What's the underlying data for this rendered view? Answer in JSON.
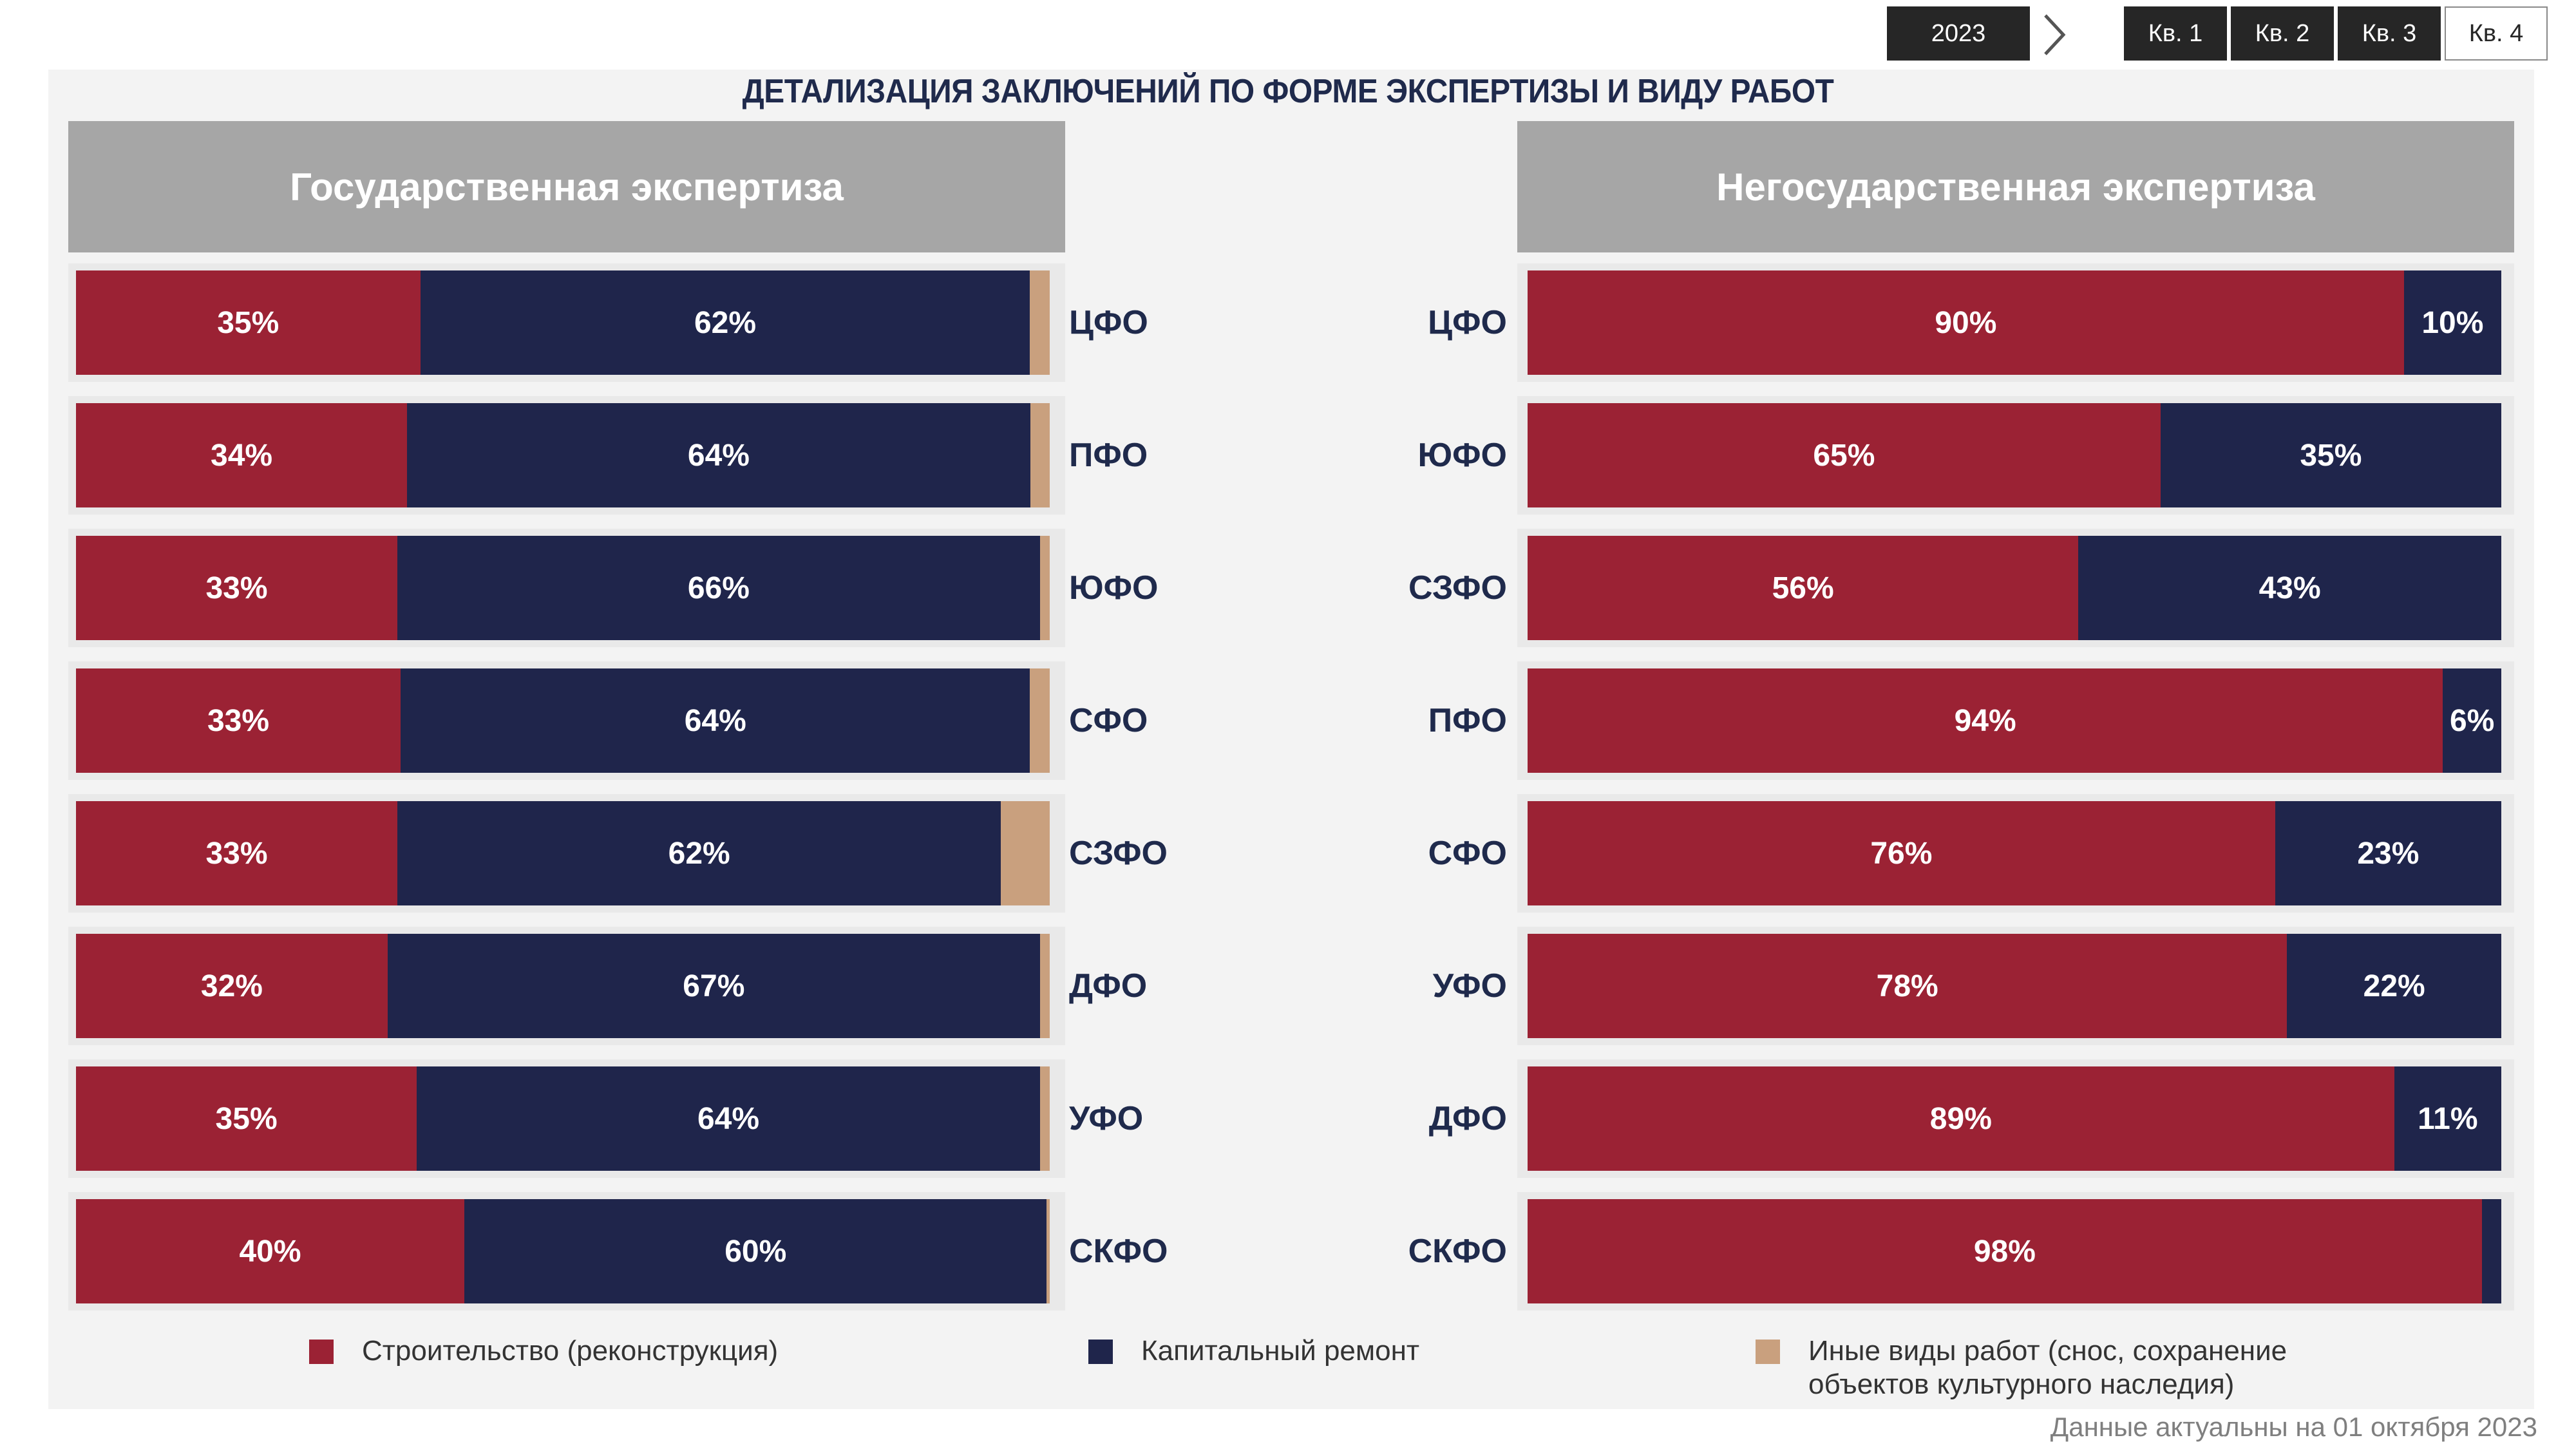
{
  "controls": {
    "year": "2023",
    "quarters": [
      {
        "label": "Кв. 1",
        "active": true
      },
      {
        "label": "Кв. 2",
        "active": true
      },
      {
        "label": "Кв. 3",
        "active": true
      },
      {
        "label": "Кв. 4",
        "active": false
      }
    ]
  },
  "colors": {
    "build": "#9b2234",
    "repair": "#1f254b",
    "other": "#c9a07e"
  },
  "chart_data": {
    "type": "bar",
    "stacked": true,
    "orientation": "horizontal",
    "title": "ДЕТАЛИЗАЦИЯ ЗАКЛЮЧЕНИЙ ПО ФОРМЕ ЭКСПЕРТИЗЫ И ВИДУ РАБОТ",
    "legend": [
      {
        "key": "build",
        "label": "Строительство (реконструкция)"
      },
      {
        "key": "repair",
        "label": "Капитальный ремонт"
      },
      {
        "key": "other",
        "label": "Иные виды работ (снос, сохранение\nобъектов культурного наследия)"
      }
    ],
    "panels": [
      {
        "title": "Государственная экспертиза",
        "rows": [
          {
            "region": "ЦФО",
            "build": 35,
            "repair": 62,
            "other": 2
          },
          {
            "region": "ПФО",
            "build": 34,
            "repair": 64,
            "other": 2
          },
          {
            "region": "ЮФО",
            "build": 33,
            "repair": 66,
            "other": 1
          },
          {
            "region": "СФО",
            "build": 33,
            "repair": 64,
            "other": 2
          },
          {
            "region": "СЗФО",
            "build": 33,
            "repair": 62,
            "other": 5
          },
          {
            "region": "ДФО",
            "build": 32,
            "repair": 67,
            "other": 1
          },
          {
            "region": "УФО",
            "build": 35,
            "repair": 64,
            "other": 1
          },
          {
            "region": "СКФО",
            "build": 40,
            "repair": 60,
            "other": 0.3
          }
        ]
      },
      {
        "title": "Негосударственная экспертиза",
        "rows": [
          {
            "region": "ЦФО",
            "build": 90,
            "repair": 10,
            "other": 0
          },
          {
            "region": "ЮФО",
            "build": 65,
            "repair": 35,
            "other": 0
          },
          {
            "region": "СЗФО",
            "build": 56,
            "repair": 43,
            "other": 0
          },
          {
            "region": "ПФО",
            "build": 94,
            "repair": 6,
            "other": 0
          },
          {
            "region": "СФО",
            "build": 76,
            "repair": 23,
            "other": 0
          },
          {
            "region": "УФО",
            "build": 78,
            "repair": 22,
            "other": 0
          },
          {
            "region": "ДФО",
            "build": 89,
            "repair": 11,
            "other": 0
          },
          {
            "region": "СКФО",
            "build": 98,
            "repair": 2,
            "other": 0
          }
        ]
      }
    ]
  },
  "footnote": "Данные актуальны на  01 октября 2023"
}
